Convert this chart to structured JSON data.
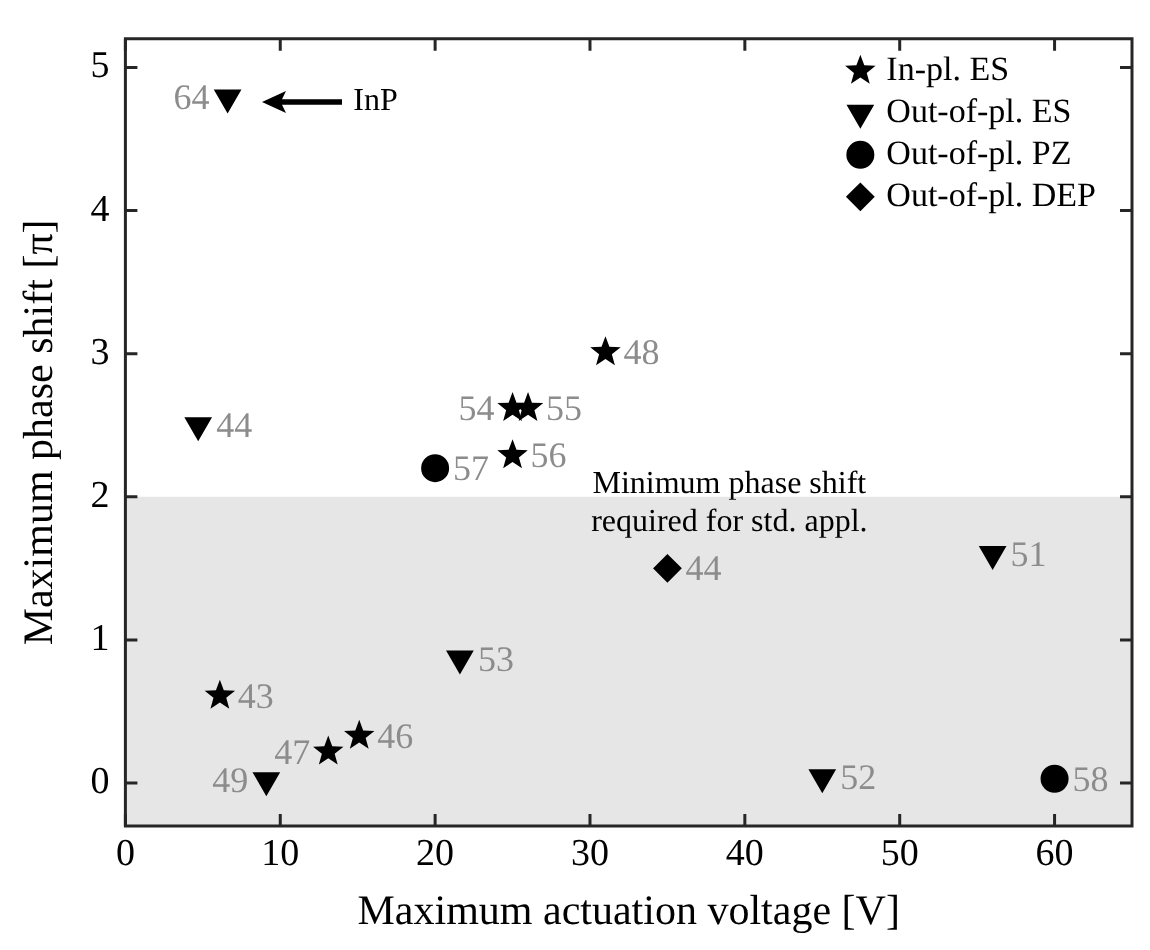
{
  "chart_data": {
    "type": "scatter",
    "xlabel": "Maximum actuation voltage [V]",
    "ylabel": "Maximum phase shift [π]",
    "xlim": [
      0,
      65
    ],
    "xticks": [
      0,
      10,
      20,
      30,
      40,
      50,
      60
    ],
    "ylim": [
      -0.3,
      5.2
    ],
    "yticks": [
      0,
      1,
      2,
      3,
      4,
      5
    ],
    "grid": false,
    "legend": "top right",
    "series": [
      {
        "name": "In-pl. ES",
        "color": "#000000",
        "marker": "star",
        "x": [
          6.1,
          13.1,
          15.1,
          25,
          26,
          25,
          31
        ],
        "values": [
          0.61,
          0.22,
          0.33,
          2.62,
          2.62,
          2.29,
          3.01
        ]
      },
      {
        "name": "Out-of-pl. ES",
        "color": "#000000",
        "marker": "triangle",
        "x": [
          6.6,
          4.7,
          9.1,
          21.6,
          45,
          56
        ],
        "values": [
          4.79,
          2.5,
          0.02,
          0.87,
          0.04,
          1.6
        ]
      },
      {
        "name": "Out-of-pl. PZ",
        "color": "#000000",
        "marker": "circle",
        "x": [
          20,
          60
        ],
        "values": [
          2.2,
          0.03
        ]
      },
      {
        "name": "Out-of-pl. DEP",
        "color": "#000000",
        "marker": "diamond",
        "x": [
          35
        ],
        "values": [
          1.5
        ]
      }
    ],
    "bands": [
      {
        "axis": "y",
        "from": -0.3,
        "to": 2,
        "label": "Minimum phase shift required for std. appl.",
        "color": "#e6e6e7"
      }
    ],
    "annotations": [
      "InP",
      {
        "text": "64",
        "x": 6.6,
        "y": 4.79
      },
      {
        "text": "44",
        "x": 4.7,
        "y": 2.5
      },
      {
        "text": "57",
        "x": 20,
        "y": 2.2
      },
      {
        "text": "54",
        "x": 25,
        "y": 2.62
      },
      {
        "text": "55",
        "x": 26,
        "y": 2.62
      },
      {
        "text": "56",
        "x": 25,
        "y": 2.29
      },
      {
        "text": "48",
        "x": 31,
        "y": 3.01
      },
      {
        "text": "43",
        "x": 6.1,
        "y": 0.61
      },
      {
        "text": "47",
        "x": 13.1,
        "y": 0.22
      },
      {
        "text": "46",
        "x": 15.1,
        "y": 0.33
      },
      {
        "text": "49",
        "x": 9.1,
        "y": 0.02
      },
      {
        "text": "53",
        "x": 21.6,
        "y": 0.87
      },
      {
        "text": "44",
        "x": 35,
        "y": 1.5
      },
      {
        "text": "51",
        "x": 56,
        "y": 1.6
      },
      {
        "text": "52",
        "x": 45,
        "y": 0.04
      },
      {
        "text": "58",
        "x": 60,
        "y": 0.03
      }
    ]
  }
}
